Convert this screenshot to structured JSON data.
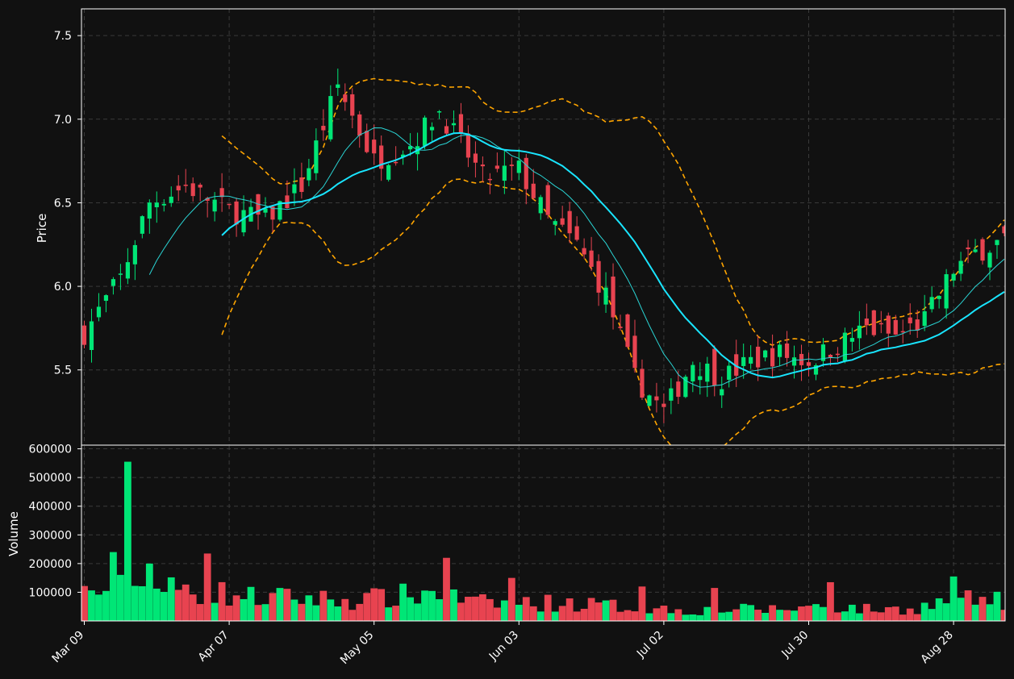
{
  "chart_data": {
    "type": "candlestick",
    "colors": {
      "background": "#111111",
      "up": "#00e676",
      "down": "#e84350",
      "ma_fast": "#2ad4d4",
      "ma_slow": "#19e5ff",
      "bollinger": "#ffa500",
      "grid": "#3a3a3a",
      "frame": "#ffffff"
    },
    "price_panel": {
      "ylabel": "Price",
      "ylim": [
        5.05,
        7.66
      ],
      "yticks": [
        "5.5",
        "6.0",
        "6.5",
        "7.0",
        "7.5"
      ],
      "ytick_values": [
        5.5,
        6.0,
        6.5,
        7.0,
        7.5
      ],
      "grid": true
    },
    "volume_panel": {
      "ylabel": "Volume",
      "ylim": [
        0,
        610000
      ],
      "yticks": [
        "100000",
        "200000",
        "300000",
        "400000",
        "500000",
        "600000"
      ],
      "ytick_values": [
        100000,
        200000,
        300000,
        400000,
        500000,
        600000
      ],
      "grid": true
    },
    "x_axis": {
      "ticks": [
        "Mar 09",
        "Apr 07",
        "May 05",
        "Jun 03",
        "Jul 02",
        "Jul 30",
        "Aug 28"
      ],
      "tick_index": [
        0,
        20,
        40,
        60,
        80,
        100,
        120
      ],
      "count": 128
    },
    "close_keypoints": [
      [
        0,
        5.72
      ],
      [
        5,
        6.05
      ],
      [
        9,
        6.5
      ],
      [
        14,
        6.6
      ],
      [
        20,
        6.45
      ],
      [
        25,
        6.4
      ],
      [
        30,
        6.6
      ],
      [
        35,
        7.2
      ],
      [
        40,
        6.75
      ],
      [
        45,
        6.85
      ],
      [
        49,
        7.05
      ],
      [
        55,
        6.65
      ],
      [
        60,
        6.7
      ],
      [
        64,
        6.4
      ],
      [
        68,
        6.25
      ],
      [
        72,
        5.95
      ],
      [
        76,
        5.45
      ],
      [
        80,
        5.25
      ],
      [
        84,
        5.55
      ],
      [
        88,
        5.45
      ],
      [
        92,
        5.55
      ],
      [
        96,
        5.6
      ],
      [
        100,
        5.55
      ],
      [
        104,
        5.65
      ],
      [
        108,
        5.75
      ],
      [
        112,
        5.7
      ],
      [
        116,
        5.8
      ],
      [
        120,
        6.1
      ],
      [
        123,
        6.2
      ],
      [
        127,
        6.28
      ]
    ],
    "volume_keypoints": [
      [
        0,
        110000
      ],
      [
        6,
        130000
      ],
      [
        12,
        120000
      ],
      [
        18,
        110000
      ],
      [
        24,
        90000
      ],
      [
        30,
        90000
      ],
      [
        36,
        80000
      ],
      [
        42,
        90000
      ],
      [
        48,
        110000
      ],
      [
        54,
        70000
      ],
      [
        60,
        70000
      ],
      [
        66,
        70000
      ],
      [
        72,
        60000
      ],
      [
        78,
        50000
      ],
      [
        84,
        40000
      ],
      [
        90,
        45000
      ],
      [
        96,
        45000
      ],
      [
        102,
        60000
      ],
      [
        108,
        45000
      ],
      [
        114,
        45000
      ],
      [
        120,
        80000
      ],
      [
        127,
        80000
      ]
    ],
    "volume_spikes": [
      [
        4,
        240000
      ],
      [
        6,
        555000
      ],
      [
        9,
        200000
      ],
      [
        17,
        235000
      ],
      [
        50,
        220000
      ],
      [
        59,
        150000
      ],
      [
        77,
        120000
      ],
      [
        87,
        115000
      ],
      [
        103,
        135000
      ],
      [
        120,
        155000
      ]
    ],
    "ma_fast_period": 10,
    "ma_slow_period": 20,
    "bollinger_period": 20
  }
}
